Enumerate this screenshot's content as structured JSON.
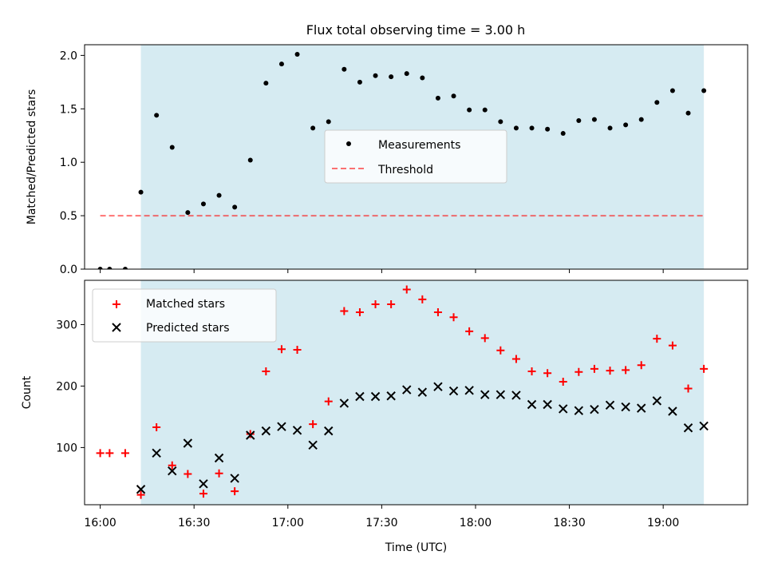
{
  "title": "Flux total observing time = 3.00 h",
  "colors": {
    "shade": "#add8e6",
    "measurement": "#000000",
    "threshold": "#ff0000",
    "matched": "#ff0000",
    "predicted": "#000000"
  },
  "chart_data": [
    {
      "type": "scatter",
      "ylabel": "Matched/Predicted stars",
      "xlim": [
        "15:55",
        "19:27"
      ],
      "ylim": [
        0,
        2.1
      ],
      "yticks": [
        0.0,
        0.5,
        1.0,
        1.5,
        2.0
      ],
      "ytick_labels": [
        "0.0",
        "0.5",
        "1.0",
        "1.5",
        "2.0"
      ],
      "shaded_span": [
        "16:13",
        "19:13"
      ],
      "legend": {
        "placement": "center",
        "entries": [
          "Measurements",
          "Threshold"
        ]
      },
      "threshold": {
        "name": "Threshold",
        "y": 0.5,
        "x": [
          "16:00",
          "19:13"
        ],
        "style": "dashed"
      },
      "series": [
        {
          "name": "Measurements",
          "marker": "dot",
          "points": [
            [
              "16:00",
              0.0
            ],
            [
              "16:03",
              0.0
            ],
            [
              "16:08",
              0.0
            ],
            [
              "16:13",
              0.72
            ],
            [
              "16:18",
              1.44
            ],
            [
              "16:23",
              1.14
            ],
            [
              "16:28",
              0.53
            ],
            [
              "16:33",
              0.61
            ],
            [
              "16:38",
              0.69
            ],
            [
              "16:43",
              0.58
            ],
            [
              "16:48",
              1.02
            ],
            [
              "16:53",
              1.74
            ],
            [
              "16:58",
              1.92
            ],
            [
              "17:03",
              2.01
            ],
            [
              "17:08",
              1.32
            ],
            [
              "17:13",
              1.38
            ],
            [
              "17:18",
              1.87
            ],
            [
              "17:23",
              1.75
            ],
            [
              "17:28",
              1.81
            ],
            [
              "17:33",
              1.8
            ],
            [
              "17:38",
              1.83
            ],
            [
              "17:43",
              1.79
            ],
            [
              "17:48",
              1.6
            ],
            [
              "17:53",
              1.62
            ],
            [
              "17:58",
              1.49
            ],
            [
              "18:03",
              1.49
            ],
            [
              "18:08",
              1.38
            ],
            [
              "18:13",
              1.32
            ],
            [
              "18:18",
              1.32
            ],
            [
              "18:23",
              1.31
            ],
            [
              "18:28",
              1.27
            ],
            [
              "18:33",
              1.39
            ],
            [
              "18:38",
              1.4
            ],
            [
              "18:43",
              1.32
            ],
            [
              "18:48",
              1.35
            ],
            [
              "18:53",
              1.4
            ],
            [
              "18:58",
              1.56
            ],
            [
              "19:03",
              1.67
            ],
            [
              "19:08",
              1.46
            ],
            [
              "19:13",
              1.67
            ]
          ]
        }
      ]
    },
    {
      "type": "scatter",
      "xlabel": "Time (UTC)",
      "ylabel": "Count",
      "xlim": [
        "15:55",
        "19:27"
      ],
      "ylim": [
        7,
        372
      ],
      "yticks": [
        100,
        200,
        300
      ],
      "ytick_labels": [
        "100",
        "200",
        "300"
      ],
      "xtick_labels": [
        "16:00",
        "16:30",
        "17:00",
        "17:30",
        "18:00",
        "18:30",
        "19:00"
      ],
      "shaded_span": [
        "16:13",
        "19:13"
      ],
      "legend": {
        "placement": "top-left",
        "entries": [
          "Matched stars",
          "Predicted stars"
        ]
      },
      "series": [
        {
          "name": "Matched stars",
          "marker": "plus",
          "points": [
            [
              "16:00",
              91
            ],
            [
              "16:03",
              91
            ],
            [
              "16:08",
              91
            ],
            [
              "16:13",
              23
            ],
            [
              "16:18",
              133
            ],
            [
              "16:23",
              71
            ],
            [
              "16:28",
              57
            ],
            [
              "16:33",
              25
            ],
            [
              "16:38",
              58
            ],
            [
              "16:43",
              29
            ],
            [
              "16:48",
              122
            ],
            [
              "16:53",
              224
            ],
            [
              "16:58",
              260
            ],
            [
              "17:03",
              259
            ],
            [
              "17:08",
              138
            ],
            [
              "17:13",
              175
            ],
            [
              "17:18",
              322
            ],
            [
              "17:23",
              320
            ],
            [
              "17:28",
              333
            ],
            [
              "17:33",
              333
            ],
            [
              "17:38",
              357
            ],
            [
              "17:43",
              341
            ],
            [
              "17:48",
              320
            ],
            [
              "17:53",
              312
            ],
            [
              "17:58",
              289
            ],
            [
              "18:03",
              278
            ],
            [
              "18:08",
              258
            ],
            [
              "18:13",
              244
            ],
            [
              "18:18",
              224
            ],
            [
              "18:23",
              221
            ],
            [
              "18:28",
              207
            ],
            [
              "18:33",
              223
            ],
            [
              "18:38",
              228
            ],
            [
              "18:43",
              225
            ],
            [
              "18:48",
              226
            ],
            [
              "18:53",
              234
            ],
            [
              "18:58",
              277
            ],
            [
              "19:03",
              266
            ],
            [
              "19:08",
              196
            ],
            [
              "19:13",
              228
            ]
          ]
        },
        {
          "name": "Predicted stars",
          "marker": "x",
          "points": [
            [
              "16:13",
              32
            ],
            [
              "16:18",
              91
            ],
            [
              "16:23",
              62
            ],
            [
              "16:28",
              107
            ],
            [
              "16:33",
              41
            ],
            [
              "16:38",
              83
            ],
            [
              "16:43",
              50
            ],
            [
              "16:48",
              120
            ],
            [
              "16:53",
              127
            ],
            [
              "16:58",
              134
            ],
            [
              "17:03",
              128
            ],
            [
              "17:08",
              104
            ],
            [
              "17:13",
              127
            ],
            [
              "17:18",
              172
            ],
            [
              "17:23",
              183
            ],
            [
              "17:28",
              183
            ],
            [
              "17:33",
              184
            ],
            [
              "17:38",
              194
            ],
            [
              "17:43",
              190
            ],
            [
              "17:48",
              199
            ],
            [
              "17:53",
              192
            ],
            [
              "17:58",
              193
            ],
            [
              "18:03",
              186
            ],
            [
              "18:08",
              186
            ],
            [
              "18:13",
              185
            ],
            [
              "18:18",
              170
            ],
            [
              "18:23",
              170
            ],
            [
              "18:28",
              163
            ],
            [
              "18:33",
              160
            ],
            [
              "18:38",
              162
            ],
            [
              "18:43",
              169
            ],
            [
              "18:48",
              166
            ],
            [
              "18:53",
              164
            ],
            [
              "18:58",
              176
            ],
            [
              "19:03",
              159
            ],
            [
              "19:08",
              132
            ],
            [
              "19:13",
              135
            ]
          ]
        }
      ]
    }
  ]
}
